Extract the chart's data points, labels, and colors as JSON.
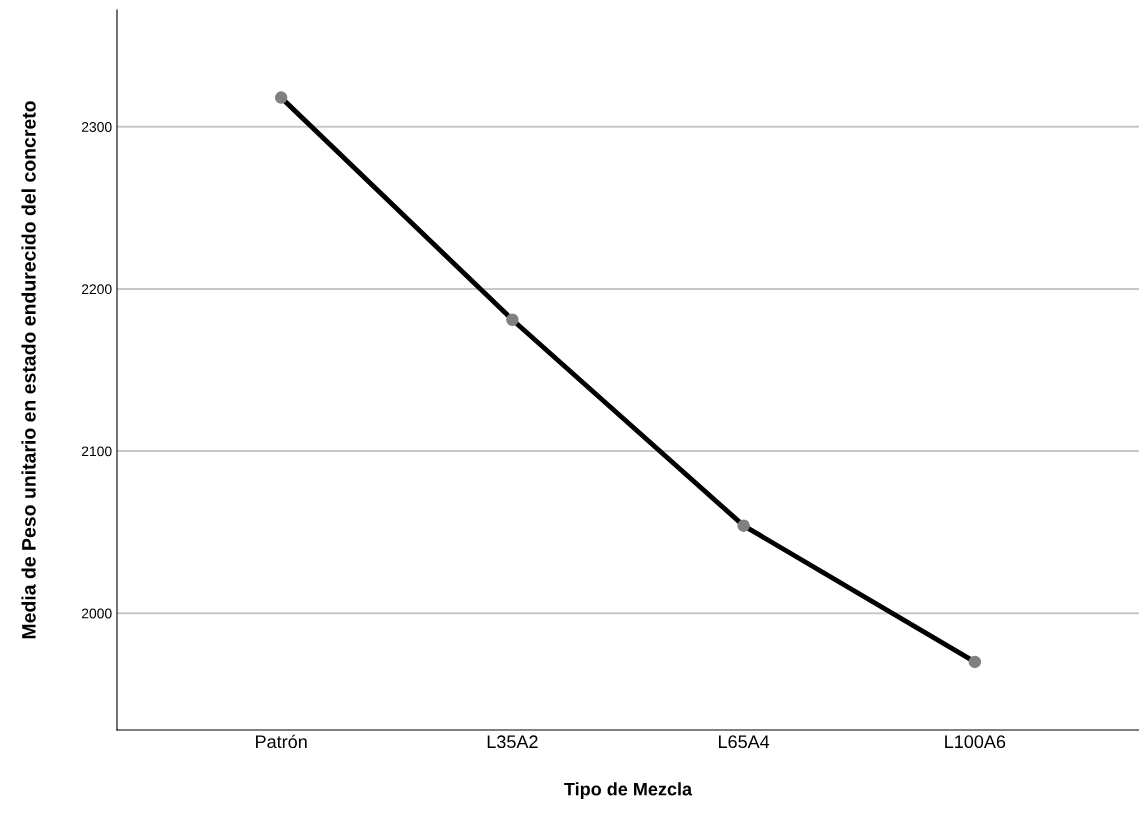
{
  "chart_data": {
    "type": "line",
    "xlabel": "Tipo de Mezcla",
    "ylabel": "Media de Peso unitario en estado endurecido del concreto",
    "categories": [
      "Patrón",
      "L35A2",
      "L65A4",
      "L100A6"
    ],
    "series": [
      {
        "color": "#000000",
        "values": [
          2318,
          2181,
          2054,
          1970
        ]
      }
    ],
    "ylim": [
      1928,
      2372
    ],
    "yticks": [
      2000,
      2100,
      2200,
      2300
    ],
    "grid": "y",
    "marker": "circle",
    "line_style": "solid",
    "legend": false
  }
}
